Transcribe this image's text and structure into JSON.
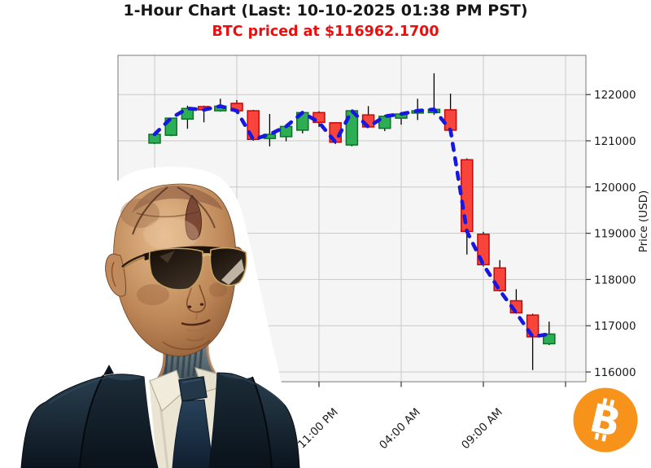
{
  "header": {
    "title": "1-Hour Chart (Last: 10-10-2025 01:38 PM PST)",
    "subtitle": "BTC priced at $116962.1700"
  },
  "colors": {
    "subtitle_red": "#ee0d0d",
    "candle_up_fill": "#2eae54",
    "candle_up_border": "#0f7029",
    "candle_down_fill": "#f8453c",
    "candle_down_border": "#c40808",
    "close_line_blue": "#1717e2",
    "grid_gray": "#c9c9c9",
    "plot_bg": "#f5f5f5",
    "axis_text": "#1a1a1a",
    "bitcoin_orange": "#f7931a"
  },
  "chart_data": {
    "type": "candlestick",
    "title": "1-Hour Chart (Last: 10-10-2025 01:38 PM PST)",
    "subtitle": "BTC priced at $116962.1700",
    "interval": "1 hour per candle",
    "y_axis": {
      "label": "Price (USD)",
      "ticks": [
        116000,
        117000,
        118000,
        119000,
        120000,
        121000,
        122000
      ],
      "ylim": [
        115750,
        122800
      ],
      "side": "right",
      "grid": true
    },
    "x_axis": {
      "grid_indices": [
        0,
        5,
        10,
        15,
        20,
        25
      ],
      "ticks": [
        {
          "index": 10,
          "label": "11:00 PM"
        },
        {
          "index": 15,
          "label": "04:00 AM"
        },
        {
          "index": 20,
          "label": "09:00 AM"
        }
      ],
      "grid": true
    },
    "overlay_line": {
      "style": "dashed",
      "series": "close",
      "color": "#1717e2",
      "note": "thick blue dashed line tracing candle close prices"
    },
    "candles_format": [
      "open",
      "high",
      "low",
      "close"
    ],
    "candles": [
      [
        120950,
        121160,
        120930,
        121140
      ],
      [
        121120,
        121500,
        121100,
        121490
      ],
      [
        121470,
        121760,
        121260,
        121700
      ],
      [
        121740,
        121760,
        121400,
        121670
      ],
      [
        121650,
        121910,
        121630,
        121750
      ],
      [
        121810,
        121880,
        121640,
        121650
      ],
      [
        121650,
        121670,
        121000,
        121030
      ],
      [
        121050,
        121580,
        120880,
        121140
      ],
      [
        121090,
        121330,
        120990,
        121310
      ],
      [
        121230,
        121650,
        121160,
        121610
      ],
      [
        121610,
        121640,
        121300,
        121400
      ],
      [
        121390,
        121400,
        120930,
        120970
      ],
      [
        120910,
        121680,
        120880,
        121650
      ],
      [
        121560,
        121750,
        121280,
        121300
      ],
      [
        121270,
        121560,
        121210,
        121530
      ],
      [
        121490,
        121600,
        121350,
        121580
      ],
      [
        121600,
        121910,
        121450,
        121650
      ],
      [
        121610,
        122460,
        121560,
        121680
      ],
      [
        121670,
        122020,
        121220,
        121230
      ],
      [
        120590,
        120620,
        118540,
        119040
      ],
      [
        118980,
        119030,
        118280,
        118320
      ],
      [
        118250,
        118420,
        117740,
        117760
      ],
      [
        117540,
        117790,
        117260,
        117280
      ],
      [
        117230,
        117260,
        116040,
        116760
      ],
      [
        116610,
        117090,
        116580,
        116820
      ]
    ],
    "last_price": 116962.17
  },
  "decorations": {
    "agent_portrait": "bald android agent wearing gold aviator sunglasses, white shirt, navy tie and navy suit",
    "bitcoin_icon": "orange circle with tilted white bitcoin B"
  }
}
